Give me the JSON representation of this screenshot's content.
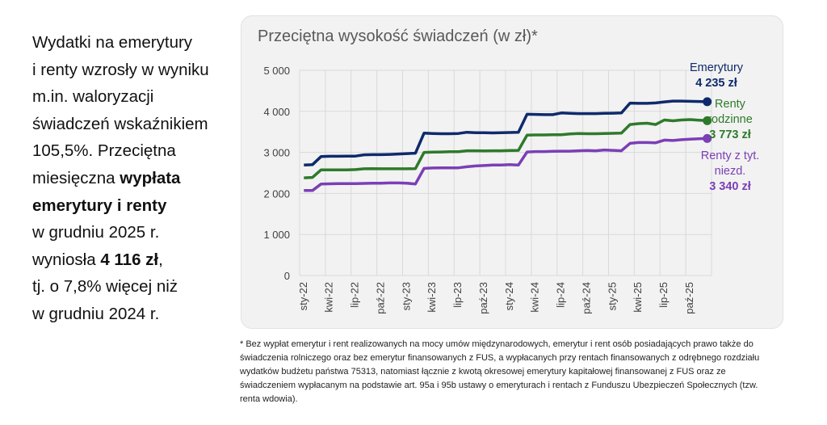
{
  "lead_text": [
    [
      {
        "t": "Wydatki na emerytury"
      }
    ],
    [
      {
        "t": "i renty wzrosły w wyniku"
      }
    ],
    [
      {
        "t": "m.in. waloryzacji"
      }
    ],
    [
      {
        "t": "świadczeń wskaźnikiem"
      }
    ],
    [
      {
        "t": "105,5%. Przeciętna"
      }
    ],
    [
      {
        "t": "miesięczna "
      },
      {
        "t": "wypłata",
        "b": true
      }
    ],
    [
      {
        "t": "emerytury i renty",
        "b": true
      }
    ],
    [
      {
        "t": "w grudniu 2025 r."
      }
    ],
    [
      {
        "t": "wyniosła "
      },
      {
        "t": "4 116 zł",
        "b": true
      },
      {
        "t": ","
      }
    ],
    [
      {
        "t": "tj. o 7,8% więcej niż"
      }
    ],
    [
      {
        "t": "w grudniu 2024 r."
      }
    ]
  ],
  "chart_data": {
    "type": "line",
    "title": "Przeciętna wysokość świadczeń (w zł)*",
    "ylim": [
      0,
      5000
    ],
    "yticks": [
      0,
      1000,
      2000,
      3000,
      4000,
      5000
    ],
    "ytick_labels": [
      "0",
      "1 000",
      "2 000",
      "3 000",
      "4 000",
      "5 000"
    ],
    "grid": true,
    "x_tick_labels": [
      "sty-22",
      "kwi-22",
      "lip-22",
      "paź-22",
      "sty-23",
      "kwi-23",
      "lip-23",
      "paź-23",
      "sty-24",
      "kwi-24",
      "lip-24",
      "paź-24",
      "sty-25",
      "kwi-25",
      "lip-25",
      "paź-25"
    ],
    "x_period": "monthly, Jan 2022 – Dec 2025",
    "series": [
      {
        "name": "Emerytury",
        "end_label": "4 235 zł",
        "color": "#0f2a6b",
        "values": [
          2690,
          2700,
          2900,
          2905,
          2905,
          2910,
          2910,
          2940,
          2945,
          2945,
          2950,
          2960,
          2970,
          2980,
          3470,
          3460,
          3455,
          3455,
          3460,
          3490,
          3480,
          3480,
          3475,
          3480,
          3485,
          3490,
          3930,
          3925,
          3920,
          3920,
          3960,
          3950,
          3945,
          3945,
          3945,
          3950,
          3955,
          3960,
          4200,
          4195,
          4195,
          4205,
          4230,
          4250,
          4250,
          4245,
          4240,
          4235
        ]
      },
      {
        "name": "Renty rodzinne",
        "end_label": "3 773 zł",
        "color": "#2e7a2a",
        "values": [
          2380,
          2390,
          2575,
          2575,
          2575,
          2575,
          2580,
          2600,
          2605,
          2600,
          2600,
          2600,
          2600,
          2605,
          3000,
          3005,
          3010,
          3015,
          3015,
          3040,
          3040,
          3035,
          3040,
          3040,
          3045,
          3050,
          3420,
          3425,
          3425,
          3430,
          3430,
          3450,
          3460,
          3455,
          3455,
          3460,
          3465,
          3470,
          3680,
          3700,
          3710,
          3680,
          3790,
          3770,
          3790,
          3800,
          3785,
          3773
        ]
      },
      {
        "name": "Renty z tyt. niezd.",
        "end_label": "3 340 zł",
        "color": "#7b3fb6",
        "values": [
          2070,
          2070,
          2230,
          2235,
          2240,
          2240,
          2240,
          2245,
          2250,
          2250,
          2255,
          2255,
          2250,
          2230,
          2610,
          2620,
          2625,
          2625,
          2625,
          2650,
          2670,
          2680,
          2690,
          2690,
          2700,
          2690,
          3010,
          3020,
          3020,
          3025,
          3030,
          3030,
          3040,
          3045,
          3040,
          3060,
          3050,
          3040,
          3220,
          3240,
          3240,
          3235,
          3300,
          3290,
          3310,
          3320,
          3330,
          3340
        ]
      }
    ]
  },
  "labels": {
    "emerytury_l1": "Emerytury",
    "rodzinne_l1": "Renty",
    "rodzinne_l2": "rodzinne",
    "niezd_l1": "Renty z tyt.",
    "niezd_l2": "niezd."
  },
  "footnote": "* Bez wypłat emerytur i rent realizowanych na mocy umów międzynarodowych, emerytur i rent osób posiadających prawo także do świadczenia rolniczego oraz bez emerytur finansowanych z FUS, a wypłacanych przy rentach finansowanych z odrębnego rozdziału wydatków budżetu państwa 75313, natomiast łącznie z kwotą okresowej emerytury kapitałowej finansowanej z FUS oraz ze świadczeniem wypłacanym na podstawie art. 95a i 95b ustawy o emeryturach i rentach z Funduszu Ubezpieczeń Społecznych (tzw. renta wdowia)."
}
